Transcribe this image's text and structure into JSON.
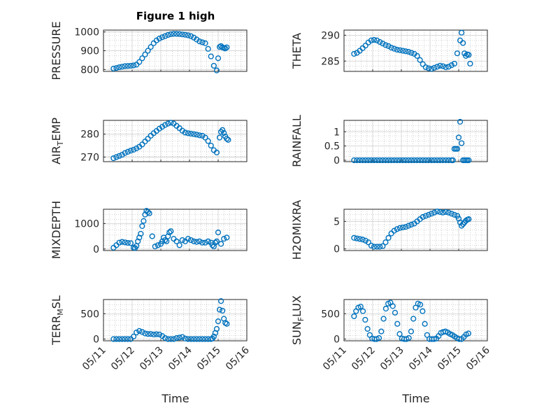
{
  "figure": {
    "title": "Figure 1 high"
  },
  "style": {
    "marker_color": "#0072BD",
    "axes_color": "#262626",
    "grid_color": "#b0b0b0"
  },
  "chart_data": [
    {
      "type": "scatter",
      "ylabel": "PRESSURE",
      "ylabel_sub": "",
      "ylabel_tail": "",
      "ylim": [
        790,
        1010
      ],
      "yticks": [
        800,
        900,
        1000
      ],
      "ytick_labels": [
        "800",
        "900",
        "1000"
      ],
      "xlim": [
        0,
        5
      ],
      "xticks": [
        0,
        1,
        2,
        3,
        4,
        5
      ],
      "xtick_labels": [
        "05/11",
        "05/12",
        "05/13",
        "05/14",
        "05/15",
        "05/16"
      ],
      "xlabel": "",
      "grid": true,
      "x": [
        0.35,
        0.45,
        0.55,
        0.65,
        0.75,
        0.85,
        0.95,
        1.05,
        1.15,
        1.25,
        1.35,
        1.45,
        1.55,
        1.65,
        1.75,
        1.85,
        1.95,
        2.05,
        2.15,
        2.25,
        2.35,
        2.45,
        2.55,
        2.65,
        2.75,
        2.85,
        2.95,
        3.05,
        3.15,
        3.25,
        3.35,
        3.45,
        3.55,
        3.65,
        3.75,
        3.85,
        3.95,
        4.0,
        4.05,
        4.1,
        4.15,
        4.2,
        4.25,
        4.3
      ],
      "y": [
        805,
        808,
        812,
        815,
        818,
        819,
        820,
        822,
        826,
        840,
        860,
        880,
        900,
        920,
        940,
        955,
        965,
        972,
        978,
        984,
        988,
        990,
        990,
        989,
        987,
        985,
        982,
        978,
        970,
        960,
        950,
        945,
        940,
        910,
        870,
        820,
        795,
        860,
        920,
        925,
        918,
        915,
        912,
        918
      ]
    },
    {
      "type": "scatter",
      "ylabel": "THETA",
      "ylabel_sub": "",
      "ylabel_tail": "",
      "ylim": [
        283,
        291
      ],
      "yticks": [
        285,
        290
      ],
      "ytick_labels": [
        "285",
        "290"
      ],
      "xlim": [
        0,
        5
      ],
      "xticks": [
        0,
        1,
        2,
        3,
        4,
        5
      ],
      "xtick_labels": [
        "05/11",
        "05/12",
        "05/13",
        "05/14",
        "05/15",
        "05/16"
      ],
      "xlabel": "",
      "grid": true,
      "x": [
        0.35,
        0.45,
        0.55,
        0.65,
        0.75,
        0.85,
        0.95,
        1.05,
        1.15,
        1.25,
        1.35,
        1.45,
        1.55,
        1.65,
        1.75,
        1.85,
        1.95,
        2.05,
        2.15,
        2.25,
        2.35,
        2.45,
        2.55,
        2.65,
        2.75,
        2.85,
        2.95,
        3.05,
        3.15,
        3.25,
        3.35,
        3.45,
        3.55,
        3.65,
        3.75,
        3.85,
        3.95,
        4.05,
        4.1,
        4.15,
        4.2,
        4.25,
        4.3,
        4.35,
        4.4
      ],
      "y": [
        286.4,
        286.6,
        287.0,
        287.5,
        288.0,
        288.6,
        289.0,
        289.1,
        289.0,
        288.7,
        288.4,
        288.1,
        287.9,
        287.6,
        287.4,
        287.2,
        287.1,
        287.0,
        286.9,
        286.8,
        286.6,
        286.4,
        286.0,
        285.2,
        284.4,
        283.8,
        283.6,
        283.5,
        283.7,
        283.9,
        284.1,
        284.0,
        283.8,
        283.9,
        284.2,
        284.5,
        286.5,
        289.0,
        290.5,
        288.5,
        286.5,
        286.0,
        286.3,
        286.2,
        284.5
      ]
    },
    {
      "type": "scatter",
      "ylabel": "AIR",
      "ylabel_sub": "T",
      "ylabel_tail": "EMP",
      "ylim": [
        268,
        286
      ],
      "yticks": [
        270,
        280
      ],
      "ytick_labels": [
        "270",
        "280"
      ],
      "xlim": [
        0,
        5
      ],
      "xticks": [
        0,
        1,
        2,
        3,
        4,
        5
      ],
      "xtick_labels": [
        "05/11",
        "05/12",
        "05/13",
        "05/14",
        "05/15",
        "05/16"
      ],
      "xlabel": "",
      "grid": true,
      "x": [
        0.35,
        0.45,
        0.55,
        0.65,
        0.75,
        0.85,
        0.95,
        1.05,
        1.15,
        1.25,
        1.35,
        1.45,
        1.55,
        1.65,
        1.75,
        1.85,
        1.95,
        2.05,
        2.15,
        2.25,
        2.35,
        2.45,
        2.55,
        2.65,
        2.75,
        2.85,
        2.95,
        3.05,
        3.15,
        3.25,
        3.35,
        3.45,
        3.55,
        3.65,
        3.75,
        3.85,
        3.95,
        4.05,
        4.1,
        4.15,
        4.2,
        4.25,
        4.3,
        4.35
      ],
      "y": [
        269.5,
        270.0,
        270.5,
        271.0,
        271.8,
        272.3,
        272.8,
        273.2,
        273.8,
        274.5,
        275.5,
        276.8,
        278.0,
        279.3,
        280.4,
        281.4,
        282.4,
        283.2,
        284.0,
        284.6,
        285.0,
        284.6,
        283.6,
        282.6,
        281.5,
        280.7,
        280.4,
        280.2,
        280.0,
        279.8,
        279.5,
        279.3,
        278.5,
        277.0,
        275.0,
        273.0,
        272.0,
        278.5,
        281.0,
        281.8,
        280.5,
        279.0,
        278.0,
        277.5
      ]
    },
    {
      "type": "scatter",
      "ylabel": "RAINFALL",
      "ylabel_sub": "",
      "ylabel_tail": "",
      "ylim": [
        -0.05,
        1.4
      ],
      "yticks": [
        0,
        0.5,
        1
      ],
      "ytick_labels": [
        "0",
        "0.5",
        "1"
      ],
      "xlim": [
        0,
        5
      ],
      "xticks": [
        0,
        1,
        2,
        3,
        4,
        5
      ],
      "xtick_labels": [
        "05/11",
        "05/12",
        "05/13",
        "05/14",
        "05/15",
        "05/16"
      ],
      "xlabel": "",
      "grid": true,
      "x": [
        0.35,
        0.45,
        0.55,
        0.65,
        0.75,
        0.85,
        0.95,
        1.05,
        1.15,
        1.25,
        1.35,
        1.45,
        1.55,
        1.65,
        1.75,
        1.85,
        1.95,
        2.05,
        2.15,
        2.25,
        2.35,
        2.45,
        2.55,
        2.65,
        2.75,
        2.85,
        2.95,
        3.05,
        3.15,
        3.25,
        3.35,
        3.45,
        3.55,
        3.65,
        3.75,
        3.8,
        3.85,
        3.9,
        3.95,
        4.0,
        4.05,
        4.1,
        4.15,
        4.2,
        4.25,
        4.3,
        4.35
      ],
      "y": [
        0,
        0,
        0,
        0,
        0,
        0,
        0,
        0,
        0,
        0,
        0,
        0,
        0,
        0,
        0,
        0,
        0,
        0,
        0,
        0,
        0,
        0,
        0,
        0,
        0,
        0,
        0,
        0,
        0,
        0,
        0,
        0,
        0,
        0,
        0,
        0,
        0.4,
        0.4,
        0.4,
        0.8,
        1.35,
        0.6,
        0,
        0,
        0,
        0,
        0
      ]
    },
    {
      "type": "scatter",
      "ylabel": "MIXDEPTH",
      "ylabel_sub": "",
      "ylabel_tail": "",
      "ylim": [
        -60,
        1560
      ],
      "yticks": [
        0,
        1000
      ],
      "ytick_labels": [
        "0",
        "1000"
      ],
      "xlim": [
        0,
        5
      ],
      "xticks": [
        0,
        1,
        2,
        3,
        4,
        5
      ],
      "xtick_labels": [
        "05/11",
        "05/12",
        "05/13",
        "05/14",
        "05/15",
        "05/16"
      ],
      "xlabel": "",
      "grid": true,
      "x": [
        0.35,
        0.45,
        0.55,
        0.65,
        0.75,
        0.85,
        0.95,
        1.05,
        1.1,
        1.15,
        1.2,
        1.25,
        1.3,
        1.35,
        1.4,
        1.45,
        1.5,
        1.55,
        1.6,
        1.7,
        1.8,
        1.9,
        2.0,
        2.05,
        2.1,
        2.15,
        2.2,
        2.25,
        2.3,
        2.35,
        2.45,
        2.55,
        2.65,
        2.75,
        2.85,
        2.95,
        3.05,
        3.15,
        3.25,
        3.35,
        3.45,
        3.55,
        3.65,
        3.75,
        3.8,
        3.85,
        3.9,
        3.95,
        4.0,
        4.1,
        4.2,
        4.3
      ],
      "y": [
        50,
        150,
        250,
        280,
        260,
        240,
        230,
        50,
        40,
        120,
        300,
        450,
        600,
        900,
        1100,
        1350,
        1500,
        1450,
        1400,
        500,
        100,
        150,
        200,
        300,
        450,
        350,
        300,
        500,
        650,
        700,
        400,
        300,
        150,
        350,
        300,
        400,
        350,
        300,
        280,
        300,
        250,
        250,
        300,
        250,
        150,
        100,
        250,
        300,
        650,
        200,
        400,
        450
      ]
    },
    {
      "type": "scatter",
      "ylabel": "H2OMIXRA",
      "ylabel_sub": "",
      "ylabel_tail": "",
      "ylim": [
        -0.3,
        7.2
      ],
      "yticks": [
        0,
        5
      ],
      "ytick_labels": [
        "0",
        "5"
      ],
      "xlim": [
        0,
        5
      ],
      "xticks": [
        0,
        1,
        2,
        3,
        4,
        5
      ],
      "xtick_labels": [
        "05/11",
        "05/12",
        "05/13",
        "05/14",
        "05/15",
        "05/16"
      ],
      "xlabel": "",
      "grid": true,
      "x": [
        0.35,
        0.45,
        0.55,
        0.65,
        0.75,
        0.85,
        0.95,
        1.05,
        1.15,
        1.25,
        1.35,
        1.45,
        1.55,
        1.65,
        1.75,
        1.85,
        1.95,
        2.05,
        2.15,
        2.25,
        2.35,
        2.45,
        2.55,
        2.65,
        2.75,
        2.85,
        2.95,
        3.05,
        3.15,
        3.25,
        3.35,
        3.45,
        3.55,
        3.65,
        3.75,
        3.85,
        3.95,
        4.0,
        4.05,
        4.1,
        4.15,
        4.2,
        4.25,
        4.3,
        4.35
      ],
      "y": [
        2.0,
        1.9,
        1.8,
        1.7,
        1.5,
        1.2,
        0.6,
        0.4,
        0.4,
        0.4,
        0.5,
        1.2,
        2.0,
        2.8,
        3.3,
        3.6,
        3.8,
        3.9,
        4.0,
        4.2,
        4.4,
        4.6,
        5.0,
        5.4,
        5.8,
        6.0,
        6.2,
        6.4,
        6.6,
        6.8,
        6.7,
        6.6,
        6.7,
        6.6,
        6.4,
        6.2,
        6.0,
        5.5,
        4.8,
        4.2,
        4.5,
        4.8,
        5.1,
        5.3,
        5.4
      ]
    },
    {
      "type": "scatter",
      "ylabel": "TERR",
      "ylabel_sub": "M",
      "ylabel_tail": "SL",
      "ylim": [
        -35,
        780
      ],
      "yticks": [
        0,
        500
      ],
      "ytick_labels": [
        "0",
        "500"
      ],
      "xlim": [
        0,
        5
      ],
      "xticks": [
        0,
        1,
        2,
        3,
        4,
        5
      ],
      "xtick_labels": [
        "05/11",
        "05/12",
        "05/13",
        "05/14",
        "05/15",
        "05/16"
      ],
      "xlabel": "",
      "grid": true,
      "x": [
        0.35,
        0.45,
        0.55,
        0.65,
        0.75,
        0.85,
        0.95,
        1.05,
        1.15,
        1.25,
        1.35,
        1.45,
        1.55,
        1.65,
        1.75,
        1.85,
        1.95,
        2.05,
        2.15,
        2.25,
        2.35,
        2.45,
        2.55,
        2.65,
        2.75,
        2.85,
        2.95,
        3.05,
        3.15,
        3.25,
        3.35,
        3.45,
        3.55,
        3.65,
        3.75,
        3.8,
        3.85,
        3.9,
        3.95,
        4.0,
        4.05,
        4.1,
        4.15,
        4.2,
        4.25,
        4.3
      ],
      "y": [
        0,
        0,
        0,
        0,
        0,
        0,
        0,
        50,
        130,
        160,
        140,
        110,
        100,
        100,
        90,
        95,
        90,
        60,
        20,
        0,
        0,
        0,
        20,
        30,
        40,
        10,
        0,
        0,
        0,
        0,
        0,
        0,
        0,
        0,
        0,
        10,
        50,
        120,
        200,
        350,
        580,
        750,
        560,
        400,
        320,
        300
      ]
    },
    {
      "type": "scatter",
      "ylabel": "SUN",
      "ylabel_sub": "F",
      "ylabel_tail": "LUX",
      "ylim": [
        -35,
        780
      ],
      "yticks": [
        0,
        500
      ],
      "ytick_labels": [
        "0",
        "500"
      ],
      "xlim": [
        0,
        5
      ],
      "xticks": [
        0,
        1,
        2,
        3,
        4,
        5
      ],
      "xtick_labels": [
        "05/11",
        "05/12",
        "05/13",
        "05/14",
        "05/15",
        "05/16"
      ],
      "xlabel": "",
      "grid": true,
      "x": [
        0.35,
        0.42,
        0.5,
        0.58,
        0.66,
        0.74,
        0.82,
        0.9,
        0.98,
        1.06,
        1.14,
        1.22,
        1.3,
        1.38,
        1.46,
        1.54,
        1.62,
        1.7,
        1.78,
        1.86,
        1.94,
        2.02,
        2.1,
        2.18,
        2.26,
        2.34,
        2.42,
        2.5,
        2.58,
        2.66,
        2.74,
        2.82,
        2.9,
        2.98,
        3.06,
        3.14,
        3.22,
        3.3,
        3.38,
        3.46,
        3.54,
        3.62,
        3.7,
        3.78,
        3.86,
        3.94,
        4.02,
        4.1,
        4.18,
        4.26,
        4.34
      ],
      "y": [
        450,
        550,
        620,
        640,
        550,
        380,
        200,
        80,
        10,
        0,
        0,
        20,
        150,
        400,
        600,
        700,
        720,
        650,
        520,
        300,
        100,
        10,
        0,
        0,
        20,
        150,
        400,
        620,
        700,
        680,
        550,
        300,
        80,
        0,
        0,
        0,
        10,
        60,
        120,
        140,
        150,
        130,
        100,
        80,
        50,
        20,
        0,
        0,
        40,
        90,
        110
      ]
    }
  ],
  "x_axis_labels": [
    "Time",
    "Time"
  ]
}
